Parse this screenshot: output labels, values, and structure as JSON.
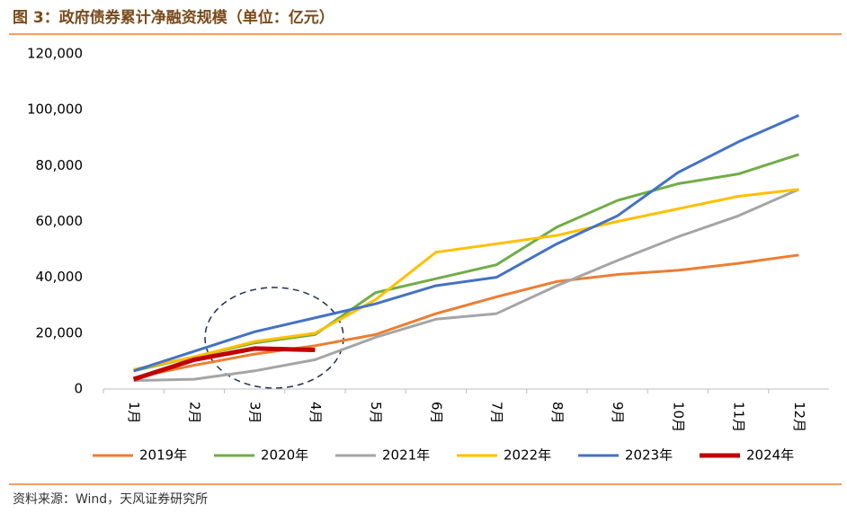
{
  "chart_data": {
    "type": "line",
    "title": "图 3：政府债券累计净融资规模（单位：亿元）",
    "source": "资料来源：Wind，天风证券研究所",
    "categories": [
      "1月",
      "2月",
      "3月",
      "4月",
      "5月",
      "6月",
      "7月",
      "8月",
      "9月",
      "10月",
      "11月",
      "12月"
    ],
    "series": [
      {
        "name": "2019年",
        "color": "#ED7D31",
        "values": [
          4000,
          8500,
          12500,
          15500,
          19500,
          27000,
          33000,
          38500,
          41000,
          42500,
          45000,
          48000
        ]
      },
      {
        "name": "2020年",
        "color": "#70AD47",
        "values": [
          6500,
          11500,
          16500,
          19500,
          34500,
          39500,
          44500,
          58000,
          67500,
          73500,
          77000,
          84000
        ]
      },
      {
        "name": "2021年",
        "color": "#A5A5A5",
        "values": [
          3000,
          3500,
          6500,
          10500,
          18500,
          25000,
          27000,
          37000,
          46000,
          54500,
          62000,
          71500
        ]
      },
      {
        "name": "2022年",
        "color": "#FFC000",
        "values": [
          7000,
          11500,
          17000,
          20000,
          32000,
          49000,
          52000,
          55000,
          60000,
          64500,
          69000,
          71500
        ]
      },
      {
        "name": "2023年",
        "color": "#4472C4",
        "values": [
          6500,
          13500,
          20500,
          25500,
          30500,
          37000,
          40000,
          52000,
          62000,
          77500,
          88500,
          98000
        ]
      },
      {
        "name": "2024年",
        "color": "#C00000",
        "values": [
          3500,
          10500,
          14500,
          14000,
          null,
          null,
          null,
          null,
          null,
          null,
          null,
          null
        ]
      }
    ],
    "ylim": [
      0,
      120000
    ],
    "yticks": [
      {
        "value": 0,
        "label": "0"
      },
      {
        "value": 20000,
        "label": "20,000"
      },
      {
        "value": 40000,
        "label": "40,000"
      },
      {
        "value": 60000,
        "label": "60,000"
      },
      {
        "value": 80000,
        "label": "80,000"
      },
      {
        "value": 100000,
        "label": "100,000"
      },
      {
        "value": 120000,
        "label": "120,000"
      }
    ],
    "grid": false
  }
}
